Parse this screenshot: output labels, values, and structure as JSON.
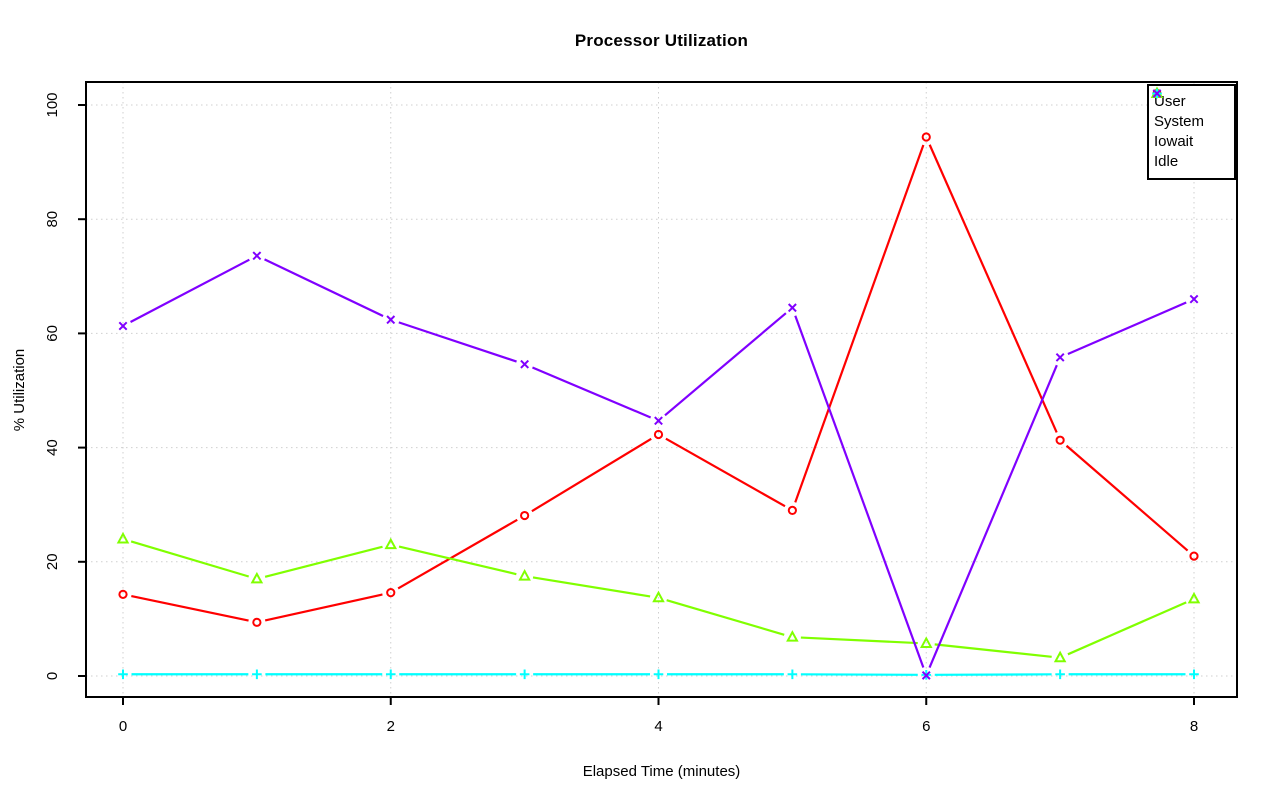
{
  "chart_data": {
    "type": "line",
    "title": "Processor Utilization",
    "xlabel": "Elapsed Time (minutes)",
    "ylabel": "% Utilization",
    "x": [
      0,
      1,
      2,
      3,
      4,
      5,
      6,
      7,
      8
    ],
    "xlim": [
      0,
      8
    ],
    "ylim": [
      0,
      100
    ],
    "x_ticks": [
      0,
      2,
      4,
      6,
      8
    ],
    "y_ticks": [
      0,
      20,
      40,
      60,
      80,
      100
    ],
    "grid": true,
    "grid_style": "dotted",
    "grid_color": "#CFCFCF",
    "axis_color": "#000000",
    "background_color": "#FFFFFF",
    "legend_position": "top-right",
    "series": [
      {
        "name": "User",
        "color": "#FF0000",
        "marker": "circle",
        "values": [
          14.3,
          9.4,
          14.6,
          28.1,
          42.3,
          29.0,
          94.4,
          41.3,
          21.0
        ]
      },
      {
        "name": "System",
        "color": "#80FF00",
        "marker": "triangle",
        "values": [
          24.0,
          17.0,
          23.0,
          17.5,
          13.7,
          6.8,
          5.7,
          3.2,
          13.5
        ]
      },
      {
        "name": "Iowait",
        "color": "#00FFFF",
        "marker": "plus",
        "values": [
          0.3,
          0.3,
          0.3,
          0.3,
          0.3,
          0.3,
          0.2,
          0.3,
          0.3
        ]
      },
      {
        "name": "Idle",
        "color": "#8000FF",
        "marker": "x",
        "values": [
          61.3,
          73.6,
          62.4,
          54.6,
          44.7,
          64.5,
          0.1,
          55.8,
          66.0
        ]
      }
    ]
  }
}
